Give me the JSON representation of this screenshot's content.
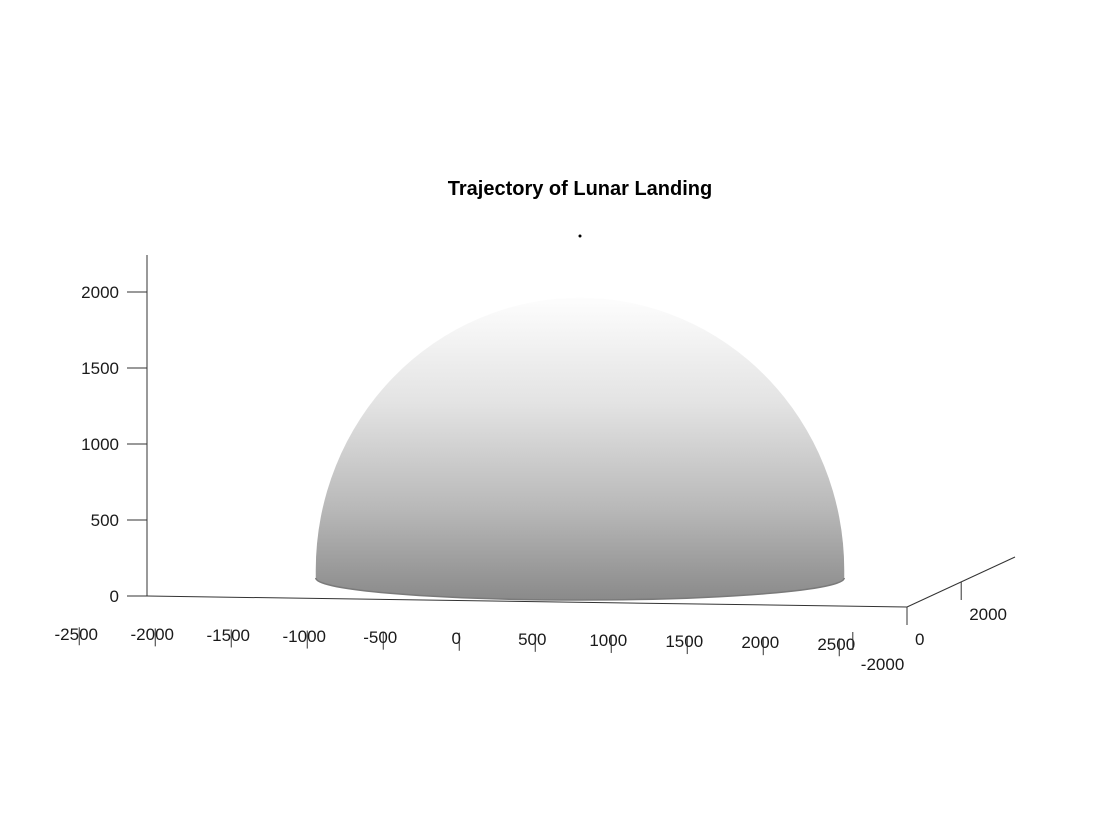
{
  "chart_data": {
    "type": "surface",
    "title": "Trajectory of Lunar Landing",
    "xlabel": "",
    "ylabel": "",
    "zlabel": "",
    "grid": false,
    "colormap": "gray",
    "x_ticks": [
      "-2500",
      "-2000",
      "-1500",
      "-1000",
      "-500",
      "0",
      "500",
      "1000",
      "1500",
      "2000",
      "2500"
    ],
    "y_ticks": [
      "-2000",
      "0",
      "2000"
    ],
    "z_ticks": [
      "0",
      "500",
      "1000",
      "1500",
      "2000"
    ],
    "xlim": [
      -2500,
      2500
    ],
    "ylim": [
      -2500,
      2500
    ],
    "zlim": [
      0,
      2250
    ],
    "series": [
      {
        "type": "hemisphere-surface",
        "center": [
          0,
          0,
          0
        ],
        "radius": 1750
      },
      {
        "type": "trajectory-point",
        "x": 0,
        "y": 0,
        "z": 2400
      }
    ]
  }
}
